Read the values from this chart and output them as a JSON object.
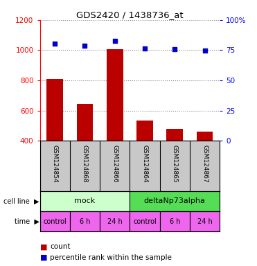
{
  "title": "GDS2420 / 1438736_at",
  "samples": [
    "GSM124854",
    "GSM124868",
    "GSM124866",
    "GSM124864",
    "GSM124865",
    "GSM124867"
  ],
  "counts": [
    810,
    645,
    1005,
    535,
    480,
    462
  ],
  "percentile_ranks": [
    80.5,
    78.5,
    82.5,
    76.5,
    76.0,
    74.5
  ],
  "bar_color": "#bb0000",
  "dot_color": "#0000cc",
  "ylim_left": [
    400,
    1200
  ],
  "yticks_left": [
    400,
    600,
    800,
    1000,
    1200
  ],
  "ylim_right": [
    0,
    100
  ],
  "yticks_right": [
    0,
    25,
    50,
    75,
    100
  ],
  "ytick_labels_right": [
    "0",
    "25",
    "50",
    "75",
    "100%"
  ],
  "cell_line_labels": [
    "mock",
    "deltaNp73alpha"
  ],
  "cell_line_colors": [
    "#ccffcc",
    "#55dd55"
  ],
  "cell_line_spans": [
    [
      0,
      3
    ],
    [
      3,
      6
    ]
  ],
  "time_labels": [
    "control",
    "6 h",
    "24 h",
    "control",
    "6 h",
    "24 h"
  ],
  "time_colors": [
    "#ee66ee",
    "#ee66ee",
    "#ee66ee",
    "#ee66ee",
    "#ee66ee",
    "#ee66ee"
  ],
  "sample_bg_color": "#c8c8c8",
  "legend_red_label": "count",
  "legend_blue_label": "percentile rank within the sample",
  "bar_width": 0.55,
  "dotted_grid_color": "#888888"
}
